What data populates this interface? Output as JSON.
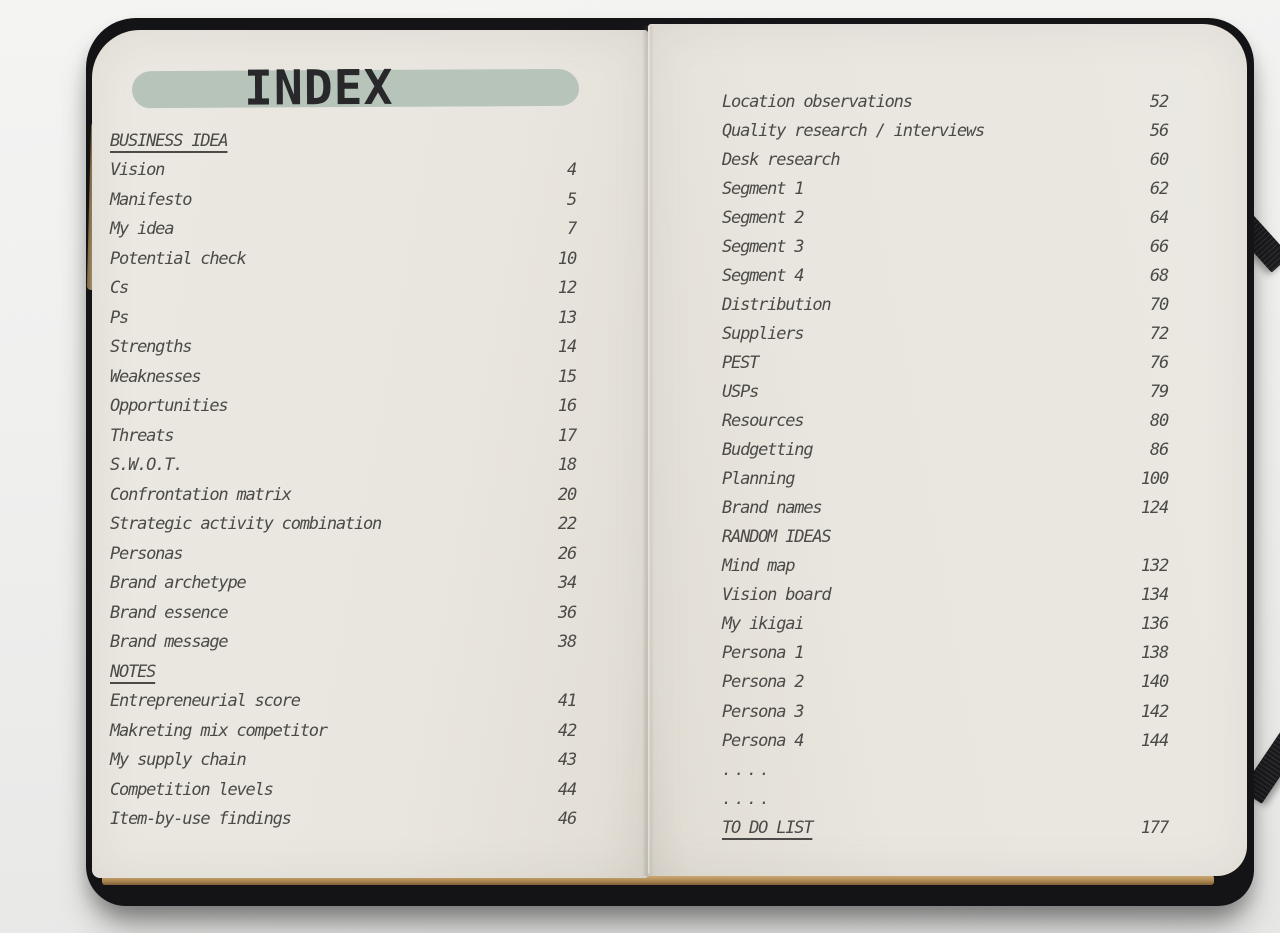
{
  "title": "INDEX",
  "colors": {
    "highlight": "#b7c4ba",
    "text": "#4b4a47",
    "page": "#e9e6df",
    "cover": "#141416",
    "band": "#1b1b1e",
    "page_edge_tan": "#b08b53"
  },
  "left_rows": [
    {
      "type": "header",
      "label": "BUSINESS IDEA",
      "page": ""
    },
    {
      "type": "item",
      "label": "Vision",
      "page": "4"
    },
    {
      "type": "item",
      "label": "Manifesto",
      "page": "5"
    },
    {
      "type": "item",
      "label": "My idea",
      "page": "7"
    },
    {
      "type": "item",
      "label": "Potential check",
      "page": "10"
    },
    {
      "type": "item",
      "label": "Cs",
      "page": "12"
    },
    {
      "type": "item",
      "label": "Ps",
      "page": "13"
    },
    {
      "type": "item",
      "label": "Strengths",
      "page": "14"
    },
    {
      "type": "item",
      "label": "Weaknesses",
      "page": "15"
    },
    {
      "type": "item",
      "label": "Opportunities",
      "page": "16"
    },
    {
      "type": "item",
      "label": "Threats",
      "page": "17"
    },
    {
      "type": "item",
      "label": "S.W.O.T.",
      "page": "18"
    },
    {
      "type": "item",
      "label": "Confrontation matrix",
      "page": "20"
    },
    {
      "type": "item",
      "label": "Strategic activity combination",
      "page": "22"
    },
    {
      "type": "item",
      "label": "Personas",
      "page": "26"
    },
    {
      "type": "item",
      "label": "Brand archetype",
      "page": "34"
    },
    {
      "type": "item",
      "label": "Brand essence",
      "page": "36"
    },
    {
      "type": "item",
      "label": "Brand message",
      "page": "38"
    },
    {
      "type": "header",
      "label": "NOTES",
      "page": ""
    },
    {
      "type": "item",
      "label": "Entrepreneurial score",
      "page": "41"
    },
    {
      "type": "item",
      "label": "Makreting mix competitor",
      "page": "42"
    },
    {
      "type": "item",
      "label": "My supply chain",
      "page": "43"
    },
    {
      "type": "item",
      "label": "Competition levels",
      "page": "44"
    },
    {
      "type": "item",
      "label": "Item-by-use findings",
      "page": "46"
    }
  ],
  "right_rows": [
    {
      "type": "item",
      "label": "Location observations",
      "page": "52"
    },
    {
      "type": "item",
      "label": "Quality research / interviews",
      "page": "56"
    },
    {
      "type": "item",
      "label": "Desk research",
      "page": "60"
    },
    {
      "type": "item",
      "label": "Segment 1",
      "page": "62"
    },
    {
      "type": "item",
      "label": "Segment 2",
      "page": "64"
    },
    {
      "type": "item",
      "label": "Segment 3",
      "page": "66"
    },
    {
      "type": "item",
      "label": "Segment 4",
      "page": "68"
    },
    {
      "type": "item",
      "label": "Distribution",
      "page": "70"
    },
    {
      "type": "item",
      "label": "Suppliers",
      "page": "72"
    },
    {
      "type": "item",
      "label": "PEST",
      "page": "76"
    },
    {
      "type": "item",
      "label": "USPs",
      "page": "79"
    },
    {
      "type": "item",
      "label": "Resources",
      "page": "80"
    },
    {
      "type": "item",
      "label": "Budgetting",
      "page": "86"
    },
    {
      "type": "item",
      "label": "Planning",
      "page": "100"
    },
    {
      "type": "item",
      "label": "Brand names",
      "page": "124"
    },
    {
      "type": "plainheader",
      "label": "RANDOM IDEAS",
      "page": ""
    },
    {
      "type": "item",
      "label": "Mind map",
      "page": "132"
    },
    {
      "type": "item",
      "label": "Vision board",
      "page": "134"
    },
    {
      "type": "item",
      "label": "My ikigai",
      "page": "136"
    },
    {
      "type": "item",
      "label": "Persona 1",
      "page": "138"
    },
    {
      "type": "item",
      "label": "Persona 2",
      "page": "140"
    },
    {
      "type": "item",
      "label": "Persona 3",
      "page": "142"
    },
    {
      "type": "item",
      "label": "Persona 4",
      "page": "144"
    },
    {
      "type": "dots",
      "label": "....",
      "page": ""
    },
    {
      "type": "dots",
      "label": "....",
      "page": ""
    },
    {
      "type": "header",
      "label": "TO DO LIST",
      "page": "177"
    }
  ]
}
